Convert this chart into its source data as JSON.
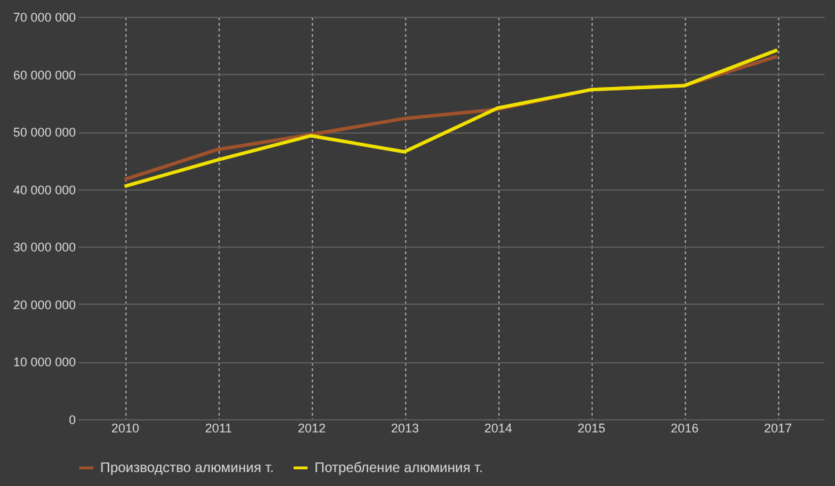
{
  "chart_data": {
    "type": "line",
    "categories": [
      "2010",
      "2011",
      "2012",
      "2013",
      "2014",
      "2015",
      "2016",
      "2017"
    ],
    "series": [
      {
        "name": "Производство алюминия т.",
        "color": "#a0522d",
        "values": [
          41700000,
          46900000,
          49500000,
          52300000,
          53900000,
          57300000,
          58000000,
          63100000
        ]
      },
      {
        "name": "Потребление алюминия т.",
        "color": "#f0e000",
        "values": [
          40500000,
          45100000,
          49300000,
          46500000,
          54100000,
          57300000,
          58000000,
          64200000
        ]
      }
    ],
    "ylim": [
      0,
      70000000
    ],
    "yticks": [
      {
        "value": 0,
        "label": "0"
      },
      {
        "value": 10000000,
        "label": "10 000 000"
      },
      {
        "value": 20000000,
        "label": "20 000 000"
      },
      {
        "value": 30000000,
        "label": "30 000 000"
      },
      {
        "value": 40000000,
        "label": "40 000 000"
      },
      {
        "value": 50000000,
        "label": "50 000 000"
      },
      {
        "value": 60000000,
        "label": "60 000 000"
      },
      {
        "value": 70000000,
        "label": "70 000 000"
      }
    ],
    "grid": true,
    "legend": "bottom",
    "marker": "none",
    "line_style": "solid"
  }
}
